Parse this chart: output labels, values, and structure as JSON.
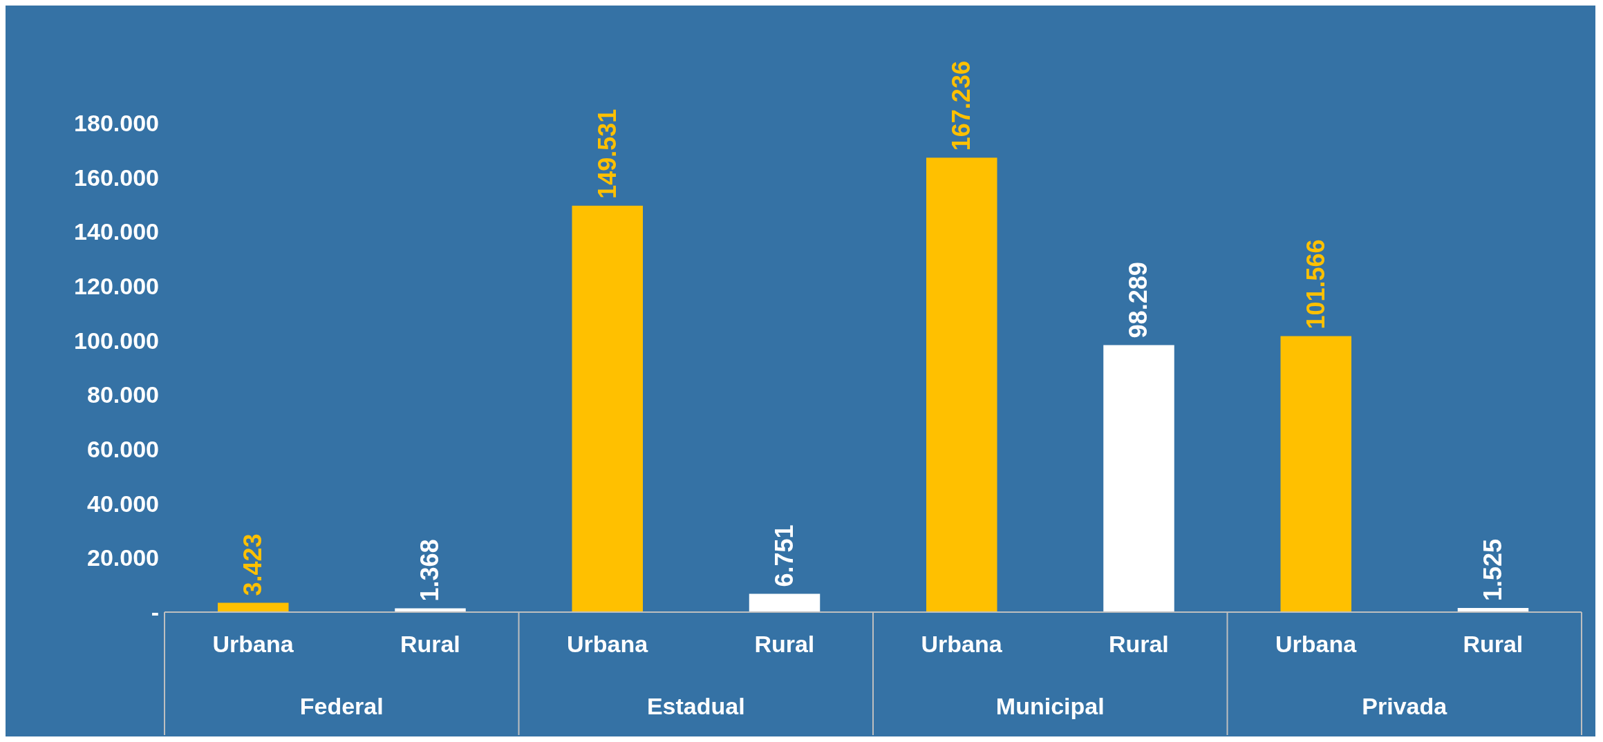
{
  "chart_data": {
    "type": "bar",
    "categories": [
      "Urbana",
      "Rural",
      "Urbana",
      "Rural",
      "Urbana",
      "Rural",
      "Urbana",
      "Rural"
    ],
    "values": [
      3423,
      1368,
      149531,
      6751,
      167236,
      98289,
      101566,
      1525
    ],
    "colors": [
      "#ffc000",
      "#ffffff",
      "#ffc000",
      "#ffffff",
      "#ffc000",
      "#ffffff",
      "#ffc000",
      "#ffffff"
    ],
    "value_labels": [
      "3.423",
      "1.368",
      "149.531",
      "6.751",
      "167.236",
      "98.289",
      "101.566",
      "1.525"
    ],
    "annotations": [
      "Federal",
      "Estadual",
      "Municipal",
      "Privada"
    ],
    "ylim": [
      0,
      180000
    ],
    "yticks": [
      {
        "value": 0,
        "label": "-"
      },
      {
        "value": 20000,
        "label": "20.000"
      },
      {
        "value": 40000,
        "label": "40.000"
      },
      {
        "value": 60000,
        "label": "60.000"
      },
      {
        "value": 80000,
        "label": "80.000"
      },
      {
        "value": 100000,
        "label": "100.000"
      },
      {
        "value": 120000,
        "label": "120.000"
      },
      {
        "value": 140000,
        "label": "140.000"
      },
      {
        "value": 160000,
        "label": "160.000"
      },
      {
        "value": 180000,
        "label": "180.000"
      }
    ],
    "grid": false,
    "legend": false
  }
}
